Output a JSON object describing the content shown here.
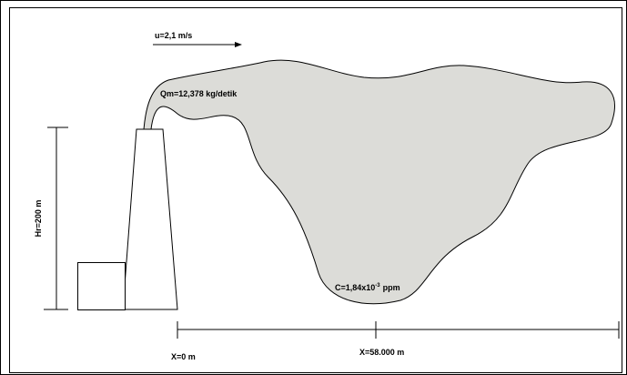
{
  "wind": "u=2,1 m/s",
  "emission": "Qm=12,378 kg/detik",
  "height": "Hr=200 m",
  "concentration": {
    "base": "C=1,84x10",
    "exponent": "-3",
    "unit": "ppm"
  },
  "x_start": "X=0 m",
  "x_end": "X=58.000 m"
}
